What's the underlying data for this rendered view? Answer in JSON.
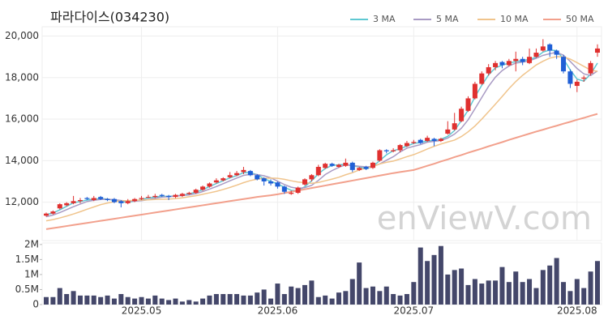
{
  "chart_data": {
    "type": "candlestick",
    "title": "파라다이스(034230)",
    "watermark": "enViewV.com",
    "up_color": "#e0302f",
    "down_color": "#1f5fd6",
    "volume_color": "#44476a",
    "grid": true,
    "categories": [
      null,
      null,
      null,
      null,
      null,
      null,
      null,
      null,
      null,
      null,
      null,
      null,
      null,
      null,
      "2025.05",
      null,
      null,
      null,
      null,
      null,
      null,
      null,
      null,
      null,
      null,
      null,
      null,
      null,
      null,
      null,
      null,
      null,
      null,
      null,
      "2025.06",
      null,
      null,
      null,
      null,
      null,
      null,
      null,
      null,
      null,
      null,
      null,
      null,
      null,
      null,
      null,
      null,
      null,
      null,
      null,
      "2025.07",
      null,
      null,
      null,
      null,
      null,
      null,
      null,
      null,
      null,
      null,
      null,
      null,
      null,
      null,
      null,
      null,
      null,
      null,
      null,
      null,
      null,
      null,
      null,
      "2025.08",
      null,
      null,
      null
    ],
    "ylim": [
      10150,
      20450
    ],
    "yticks": [
      {
        "value": 12000,
        "label": "12,000"
      },
      {
        "value": 14000,
        "label": "14,000"
      },
      {
        "value": 16000,
        "label": "16,000"
      },
      {
        "value": 18000,
        "label": "18,000"
      },
      {
        "value": 20000,
        "label": "20,000"
      }
    ],
    "volume_ylim": [
      0,
      2050000
    ],
    "volume_yticks": [
      0,
      {
        "value": 500000,
        "label": "0.5M"
      },
      {
        "value": 1000000,
        "label": "1M"
      },
      {
        "value": 1500000,
        "label": "1.5M"
      },
      {
        "value": 2000000,
        "label": "2M"
      }
    ],
    "ohlc": [
      [
        11350,
        11500,
        11300,
        11450
      ],
      [
        11450,
        11600,
        11400,
        11550
      ],
      [
        11700,
        11950,
        11650,
        11900
      ],
      [
        11850,
        12000,
        11800,
        11950
      ],
      [
        11950,
        12300,
        11900,
        12050
      ],
      [
        12050,
        12200,
        11950,
        12100
      ],
      [
        12200,
        12250,
        12100,
        12150
      ],
      [
        12100,
        12300,
        12050,
        12200
      ],
      [
        12250,
        12300,
        12100,
        12150
      ],
      [
        12150,
        12200,
        12050,
        12100
      ],
      [
        12150,
        12200,
        11950,
        12000
      ],
      [
        12050,
        12100,
        11750,
        11950
      ],
      [
        11950,
        12150,
        11900,
        12050
      ],
      [
        12050,
        12200,
        12000,
        12150
      ],
      [
        12150,
        12300,
        12100,
        12200
      ],
      [
        12250,
        12350,
        12200,
        12250
      ],
      [
        12250,
        12400,
        12200,
        12300
      ],
      [
        12350,
        12400,
        12250,
        12300
      ],
      [
        12300,
        12350,
        12100,
        12250
      ],
      [
        12250,
        12400,
        12200,
        12350
      ],
      [
        12300,
        12450,
        12250,
        12400
      ],
      [
        12400,
        12500,
        12350,
        12450
      ],
      [
        12450,
        12650,
        12400,
        12600
      ],
      [
        12600,
        12800,
        12550,
        12750
      ],
      [
        12750,
        12950,
        12700,
        12900
      ],
      [
        12950,
        13150,
        12900,
        13050
      ],
      [
        13050,
        13200,
        13000,
        13150
      ],
      [
        13200,
        13450,
        13150,
        13300
      ],
      [
        13300,
        13500,
        13250,
        13400
      ],
      [
        13450,
        13700,
        13350,
        13550
      ],
      [
        13500,
        13550,
        13250,
        13300
      ],
      [
        13300,
        13350,
        13050,
        13100
      ],
      [
        13150,
        13200,
        12800,
        13000
      ],
      [
        13000,
        13100,
        12800,
        12900
      ],
      [
        12950,
        13000,
        12650,
        12750
      ],
      [
        12750,
        12800,
        12400,
        12500
      ],
      [
        12400,
        12550,
        12350,
        12450
      ],
      [
        12450,
        12750,
        12400,
        12700
      ],
      [
        12850,
        13150,
        12800,
        13100
      ],
      [
        13100,
        13350,
        13000,
        13300
      ],
      [
        13300,
        13800,
        13250,
        13700
      ],
      [
        13650,
        13900,
        13600,
        13850
      ],
      [
        13850,
        13900,
        13700,
        13750
      ],
      [
        13700,
        13850,
        13650,
        13800
      ],
      [
        13750,
        14100,
        13700,
        13900
      ],
      [
        13900,
        13950,
        13450,
        13550
      ],
      [
        13550,
        13700,
        13500,
        13650
      ],
      [
        13700,
        13750,
        13550,
        13600
      ],
      [
        13650,
        13950,
        13600,
        13900
      ],
      [
        14000,
        14550,
        13950,
        14500
      ],
      [
        14500,
        14550,
        14350,
        14450
      ],
      [
        14450,
        14600,
        14400,
        14500
      ],
      [
        14500,
        14800,
        14400,
        14750
      ],
      [
        14700,
        14950,
        14650,
        14850
      ],
      [
        14850,
        15000,
        14800,
        14900
      ],
      [
        15000,
        15050,
        14800,
        14850
      ],
      [
        14950,
        15200,
        14900,
        15100
      ],
      [
        15050,
        15100,
        14700,
        14950
      ],
      [
        14950,
        15100,
        14900,
        15050
      ],
      [
        15300,
        15900,
        15250,
        15500
      ],
      [
        15500,
        16300,
        15450,
        15800
      ],
      [
        15900,
        16600,
        15850,
        16500
      ],
      [
        16400,
        17100,
        16350,
        17000
      ],
      [
        17000,
        17800,
        16950,
        17700
      ],
      [
        17700,
        18300,
        17650,
        18200
      ],
      [
        18200,
        18650,
        18100,
        18500
      ],
      [
        18500,
        18800,
        18350,
        18700
      ],
      [
        18750,
        18800,
        18450,
        18600
      ],
      [
        18600,
        18900,
        18550,
        18800
      ],
      [
        18800,
        19250,
        18300,
        18900
      ],
      [
        18900,
        19000,
        18600,
        18750
      ],
      [
        18700,
        19400,
        18650,
        19000
      ],
      [
        19000,
        19400,
        18950,
        19200
      ],
      [
        19300,
        19850,
        19250,
        19500
      ],
      [
        19600,
        19650,
        19000,
        19300
      ],
      [
        19300,
        19350,
        18900,
        19100
      ],
      [
        19000,
        19100,
        18200,
        18300
      ],
      [
        18300,
        18400,
        17500,
        17700
      ],
      [
        17600,
        17900,
        17300,
        17800
      ],
      [
        17950,
        18100,
        17800,
        18000
      ],
      [
        18200,
        18800,
        18100,
        18700
      ],
      [
        19200,
        19600,
        19000,
        19400
      ]
    ],
    "volume": [
      250000,
      250000,
      550000,
      350000,
      450000,
      300000,
      300000,
      300000,
      250000,
      300000,
      200000,
      350000,
      250000,
      200000,
      250000,
      200000,
      300000,
      200000,
      150000,
      200000,
      100000,
      150000,
      100000,
      200000,
      300000,
      350000,
      350000,
      350000,
      350000,
      300000,
      300000,
      400000,
      500000,
      200000,
      700000,
      350000,
      600000,
      550000,
      650000,
      800000,
      250000,
      300000,
      200000,
      400000,
      450000,
      850000,
      1400000,
      550000,
      600000,
      450000,
      600000,
      350000,
      300000,
      350000,
      750000,
      1900000,
      1450000,
      1650000,
      1950000,
      1000000,
      1150000,
      1200000,
      650000,
      850000,
      700000,
      800000,
      800000,
      1250000,
      750000,
      1100000,
      750000,
      850000,
      550000,
      1150000,
      1300000,
      1550000,
      750000,
      450000,
      850000,
      550000,
      1100000,
      1450000
    ],
    "series": [
      {
        "name": "3 MA",
        "color": "#5fc8d2",
        "values": [
          11400,
          11480,
          11630,
          11800,
          11970,
          12030,
          12100,
          12150,
          12170,
          12150,
          12080,
          12020,
          12000,
          12050,
          12130,
          12200,
          12250,
          12280,
          12280,
          12300,
          12330,
          12400,
          12480,
          12600,
          12750,
          12900,
          13030,
          13170,
          13280,
          13420,
          13420,
          13320,
          13130,
          13000,
          12880,
          12720,
          12570,
          12550,
          12750,
          13030,
          13370,
          13620,
          13770,
          13800,
          13820,
          13750,
          13700,
          13600,
          13720,
          14000,
          14280,
          14480,
          14570,
          14700,
          14830,
          14870,
          14950,
          14970,
          15030,
          15170,
          15450,
          15930,
          16430,
          17070,
          17630,
          18130,
          18470,
          18600,
          18700,
          18770,
          18820,
          18880,
          18980,
          19230,
          19330,
          19300,
          18900,
          18370,
          17930,
          17830,
          18170,
          18700
        ]
      },
      {
        "name": "5 MA",
        "color": "#a99bc4",
        "values": [
          11300,
          11380,
          11500,
          11640,
          11780,
          11910,
          12030,
          12090,
          12130,
          12140,
          12120,
          12080,
          12050,
          12050,
          12070,
          12120,
          12190,
          12240,
          12260,
          12290,
          12320,
          12350,
          12410,
          12510,
          12630,
          12750,
          12890,
          13030,
          13160,
          13290,
          13340,
          13330,
          13270,
          13170,
          13010,
          12850,
          12720,
          12660,
          12700,
          12810,
          13050,
          13330,
          13520,
          13680,
          13800,
          13770,
          13730,
          13700,
          13720,
          13840,
          14020,
          14190,
          14420,
          14600,
          14690,
          14770,
          14890,
          14930,
          14970,
          15090,
          15280,
          15560,
          15970,
          16500,
          17040,
          17580,
          18020,
          18340,
          18560,
          18700,
          18750,
          18810,
          18930,
          19070,
          19150,
          19220,
          19080,
          18780,
          18440,
          18180,
          18100,
          18320
        ]
      },
      {
        "name": "10 MA",
        "color": "#f0c48c",
        "values": [
          11100,
          11160,
          11240,
          11330,
          11430,
          11540,
          11660,
          11770,
          11880,
          11960,
          12020,
          12060,
          12070,
          12090,
          12100,
          12110,
          12130,
          12140,
          12150,
          12170,
          12210,
          12260,
          12310,
          12380,
          12450,
          12520,
          12610,
          12710,
          12820,
          12940,
          13040,
          13110,
          13150,
          13160,
          13150,
          13100,
          13030,
          12970,
          12940,
          12910,
          12950,
          13030,
          13110,
          13200,
          13320,
          13420,
          13550,
          13640,
          13720,
          13840,
          13920,
          13980,
          14080,
          14190,
          14290,
          14420,
          14560,
          14690,
          14800,
          14900,
          14990,
          15160,
          15390,
          15670,
          16000,
          16360,
          16720,
          17090,
          17470,
          17810,
          18110,
          18360,
          18610,
          18790,
          18940,
          19010,
          18990,
          18890,
          18720,
          18540,
          18360,
          18300
        ]
      },
      {
        "name": "50 MA",
        "color": "#f2a08c",
        "values": [
          10700,
          10750,
          10800,
          10850,
          10900,
          10950,
          11000,
          11050,
          11100,
          11150,
          11200,
          11250,
          11300,
          11350,
          11400,
          11450,
          11500,
          11550,
          11600,
          11650,
          11700,
          11750,
          11800,
          11850,
          11900,
          11950,
          12000,
          12050,
          12100,
          12150,
          12200,
          12250,
          12290,
          12330,
          12380,
          12440,
          12500,
          12560,
          12620,
          12680,
          12740,
          12800,
          12860,
          12920,
          12980,
          13040,
          13100,
          13160,
          13220,
          13280,
          13340,
          13400,
          13450,
          13500,
          13550,
          13650,
          13750,
          13850,
          13960,
          14060,
          14170,
          14270,
          14380,
          14480,
          14580,
          14690,
          14790,
          14890,
          15000,
          15100,
          15200,
          15300,
          15400,
          15490,
          15590,
          15680,
          15780,
          15870,
          15970,
          16060,
          16160,
          16250
        ]
      }
    ]
  }
}
